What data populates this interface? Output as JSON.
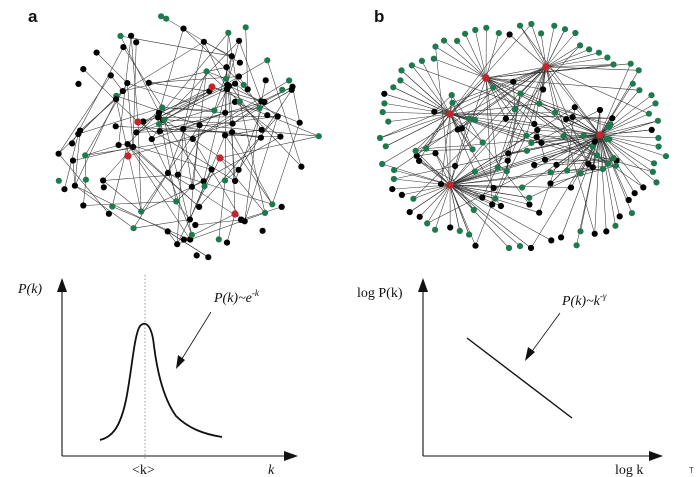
{
  "panels": {
    "a": {
      "letter": "a",
      "formula_base": "P(k)~e",
      "formula_exp": "-k",
      "ylabel": "P(k)",
      "mean_label": "<k>",
      "xlabel": "k"
    },
    "b": {
      "letter": "b",
      "formula_base": "P(k)~k",
      "formula_exp": "-γ",
      "ylabel": "log P(k)",
      "xlabel": "log k"
    }
  },
  "colors": {
    "node_default": "#000000",
    "node_peripheral": "#1e7a4e",
    "node_hub": "#c0262b",
    "edge": "#333333"
  },
  "corner_fragment": "T",
  "network_a": {
    "type": "random (exponential)",
    "node_count": 120,
    "hub_count": 5
  },
  "network_b": {
    "type": "scale-free",
    "node_count": 130,
    "hub_count": 5
  }
}
